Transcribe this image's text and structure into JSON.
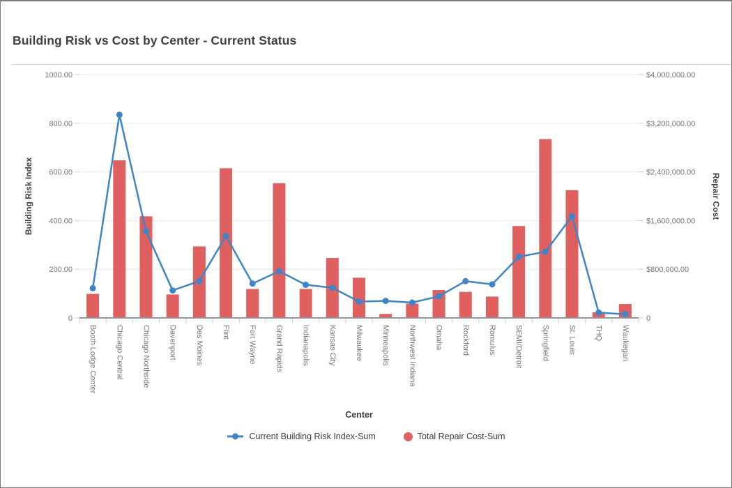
{
  "chart_data": {
    "type": "combo",
    "title": "Building Risk vs Cost by Center - Current Status",
    "xlabel": "Center",
    "ylabel_left": "Building Risk Index",
    "ylabel_right": "Repair Cost",
    "grid": "horizontal",
    "legend_position": "bottom",
    "ylim_left": [
      0,
      1000
    ],
    "ylim_right": [
      0,
      4000000
    ],
    "y_left_ticks": [
      "0",
      "200.00",
      "400.00",
      "600.00",
      "800.00",
      "1000.00"
    ],
    "y_right_ticks": [
      "0",
      "$800,000.00",
      "$1,600,000.00",
      "$2,400,000.00",
      "$3,200,000.00",
      "$4,000,000.00"
    ],
    "categories": [
      "Booth Lodge Center",
      "Chicago Central",
      "Chicago Northside",
      "Davenport",
      "Des Moines",
      "Flint",
      "Fort Wayne",
      "Grand Rapids",
      "Indianapolis",
      "Kansas City",
      "Milwaukee",
      "Minneapolis",
      "Northwest Indiana",
      "Omaha",
      "Rockford",
      "Romulus",
      "SEMI/Detroit",
      "Springfield",
      "St. Louis",
      "THQ",
      "Waukegan"
    ],
    "series": [
      {
        "name": "Current Building Risk Index-Sum",
        "type": "line",
        "axis": "left",
        "color": "#3d85c6",
        "values": [
          122,
          835,
          356,
          113,
          151,
          337,
          141,
          192,
          136,
          124,
          67,
          70,
          63,
          89,
          151,
          138,
          251,
          272,
          418,
          22,
          15
        ]
      },
      {
        "name": "Total Repair Cost-Sum",
        "type": "bar",
        "axis": "right",
        "color": "#e06060",
        "values": [
          395000,
          2590000,
          1670000,
          385000,
          1175000,
          2460000,
          475000,
          2215000,
          475000,
          985000,
          660000,
          65000,
          235000,
          458000,
          428000,
          350000,
          1510000,
          2940000,
          2100000,
          92000,
          228000
        ]
      }
    ],
    "style": {
      "grid_color": "#e9e9e9",
      "axis_line_color": "#8f959b",
      "tick_mark_color": "#c8d0d9",
      "tick_label_color": "#757575",
      "axis_title_color": "#3f3f3f",
      "title_color": "#3c4043"
    }
  }
}
